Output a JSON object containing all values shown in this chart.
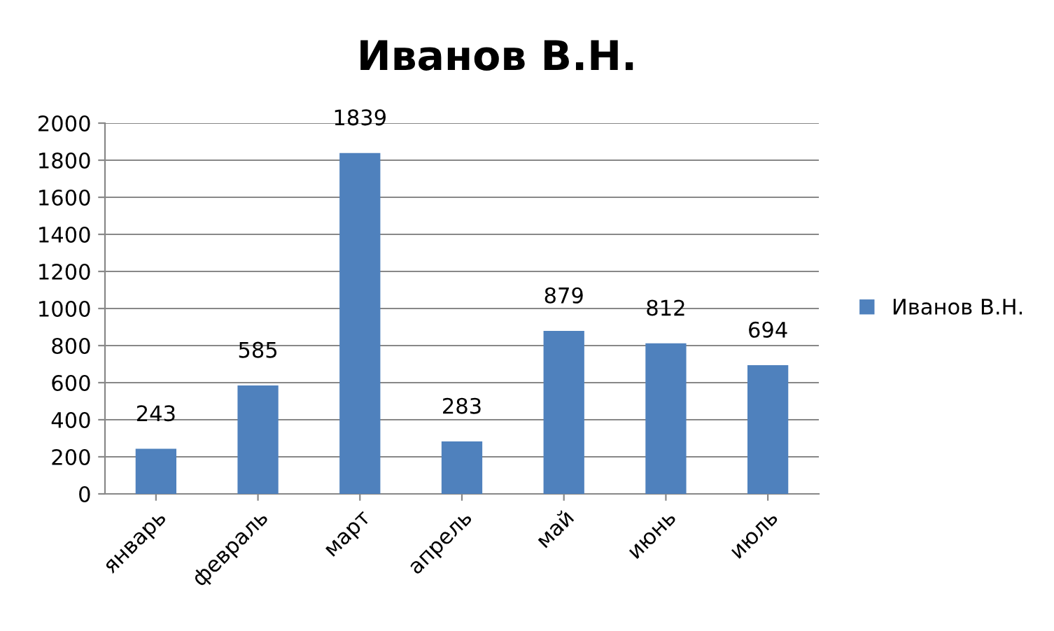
{
  "chart_data": {
    "type": "bar",
    "title": "Иванов В.Н.",
    "categories": [
      "январь",
      "февраль",
      "март",
      "апрель",
      "май",
      "июнь",
      "июль"
    ],
    "series": [
      {
        "name": "Иванов В.Н.",
        "color": "#4f81bd",
        "values": [
          243,
          585,
          1839,
          283,
          879,
          812,
          694
        ]
      }
    ],
    "ylim": [
      0,
      2000
    ],
    "yticks": [
      0,
      200,
      400,
      600,
      800,
      1000,
      1200,
      1400,
      1600,
      1800,
      2000
    ],
    "grid": "y",
    "legend": "right",
    "data_labels": true
  }
}
